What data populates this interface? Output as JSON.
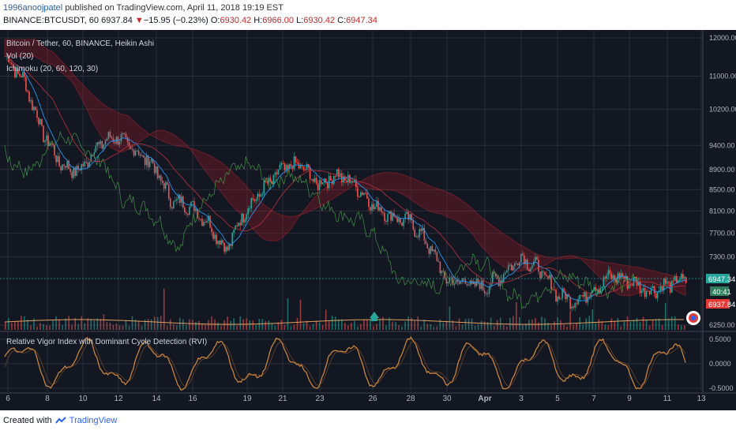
{
  "header": {
    "user": "1996anoojpatel",
    "published": "published on TradingView.com, April 11, 2018 19:19 EST",
    "symbol": "BINANCE:BTCUSDT, 60",
    "last": "6937.84",
    "arrow": "▼",
    "change": "−15.95 (−0.23%)",
    "o_label": "O:",
    "o": "6930.42",
    "h_label": "H:",
    "h": "6966.00",
    "l_label": "L:",
    "l": "6930.42",
    "c_label": "C:",
    "c": "6947.34"
  },
  "legend": {
    "main": "Bitcoin / Tether, 60, BINANCE, Heikin Ashi",
    "vol": "Vol (20)",
    "ichimoku": "Ichimoku (20, 60, 120, 30)",
    "rvi": "Relative Vigor Index with Dominant Cycle Detection (RVI)"
  },
  "badges": {
    "price": "6947.34",
    "countdown": "40:41",
    "close": "6937.84"
  },
  "colors": {
    "background": "#131722",
    "up": "#26a69a",
    "down": "#ef5350",
    "rvi": "#c8843c",
    "badge_green": "#2e7d5b",
    "badge_red": "#e53935"
  },
  "footer": {
    "created": "Created with",
    "brand": "TradingView"
  },
  "chart_data": [
    {
      "type": "line",
      "subtype": "heikin-ashi candlestick with Ichimoku cloud and volume",
      "y_ticks": [
        "12000.00",
        "11000.00",
        "10200.00",
        "9400.00",
        "8900.00",
        "8500.00",
        "8100.00",
        "7700.00",
        "7300.00",
        "6250.00"
      ],
      "x_ticks": [
        "6",
        "8",
        "10",
        "12",
        "14",
        "16",
        "19",
        "21",
        "23",
        "26",
        "28",
        "30",
        "Apr",
        "3",
        "5",
        "7",
        "9",
        "11",
        "13"
      ],
      "ylim": [
        6250,
        12000
      ],
      "scale": "log",
      "x": [
        "Mar 6",
        "Mar 7",
        "Mar 8",
        "Mar 9",
        "Mar 10",
        "Mar 11",
        "Mar 12",
        "Mar 13",
        "Mar 14",
        "Mar 15",
        "Mar 16",
        "Mar 17",
        "Mar 18",
        "Mar 19",
        "Mar 20",
        "Mar 21",
        "Mar 22",
        "Mar 23",
        "Mar 24",
        "Mar 25",
        "Mar 26",
        "Mar 27",
        "Mar 28",
        "Mar 29",
        "Mar 30",
        "Mar 31",
        "Apr 1",
        "Apr 2",
        "Apr 3",
        "Apr 4",
        "Apr 5",
        "Apr 6",
        "Apr 7",
        "Apr 8",
        "Apr 9",
        "Apr 10",
        "Apr 11",
        "Apr 12"
      ],
      "series": [
        {
          "values": [
            11500,
            10900,
            9700,
            9000,
            8850,
            9400,
            9600,
            9300,
            9000,
            8300,
            8200,
            7900,
            7400,
            8100,
            8500,
            8900,
            9000,
            8600,
            8800,
            8600,
            8200,
            8000,
            7900,
            7500,
            6900,
            6900,
            6800,
            7000,
            7300,
            7100,
            6700,
            6600,
            6800,
            7000,
            6900,
            6750,
            6850,
            6950
          ]
        }
      ]
    },
    {
      "type": "line",
      "subtype": "oscillator",
      "y_ticks": [
        "0.5000",
        "0.0000",
        "-0.5000"
      ],
      "ylim": [
        -0.65,
        0.6
      ]
    }
  ]
}
